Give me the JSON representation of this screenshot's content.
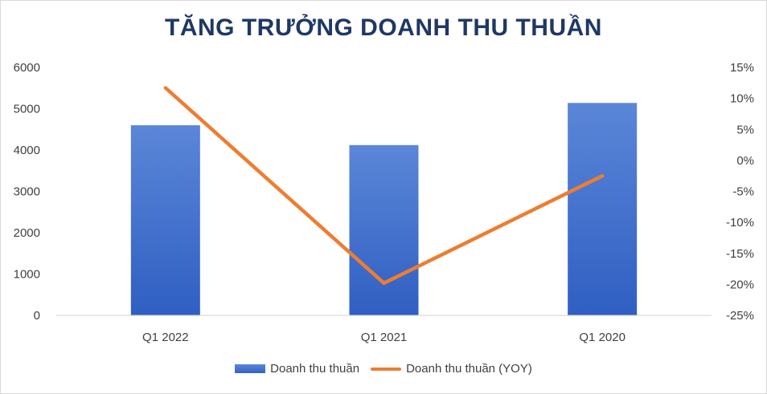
{
  "chart_data": {
    "type": "bar",
    "title": "TĂNG TRƯỞNG DOANH THU THUẦN",
    "categories": [
      "Q1 2022",
      "Q1 2021",
      "Q1 2020"
    ],
    "series": [
      {
        "name": "Doanh thu thuần",
        "type": "bar",
        "axis": "left",
        "values": [
          4600,
          4120,
          5140
        ],
        "color": "#4472c4"
      },
      {
        "name": "Doanh thu thuần (YOY)",
        "type": "line",
        "axis": "right",
        "values": [
          11.7,
          -19.8,
          -2.5
        ],
        "color": "#ed7d31"
      }
    ],
    "left_axis": {
      "ylim": [
        0,
        6000
      ],
      "ticks": [
        "0",
        "1000",
        "2000",
        "3000",
        "4000",
        "5000",
        "6000"
      ]
    },
    "right_axis": {
      "ylim": [
        -25,
        15
      ],
      "ticks": [
        "-25%",
        "-20%",
        "-15%",
        "-10%",
        "-5%",
        "0%",
        "5%",
        "10%",
        "15%"
      ]
    },
    "grid": false,
    "legend_position": "bottom"
  }
}
